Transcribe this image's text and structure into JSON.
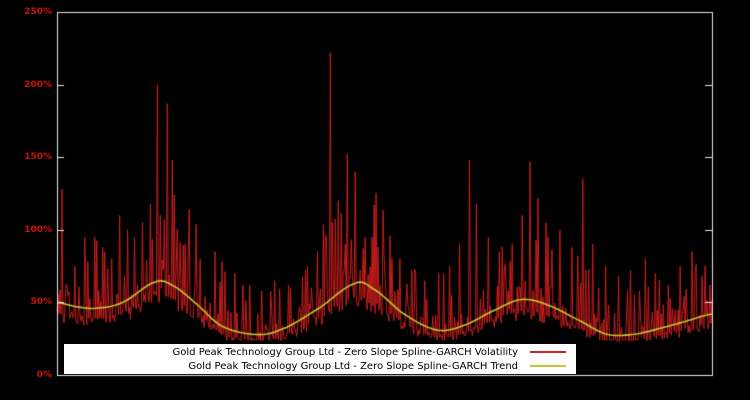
{
  "colors": {
    "background": "#000000",
    "frame": "#e8e8e8",
    "volatility": "#d81f1f",
    "trend": "#c6c630",
    "tick_label": "#cc1111",
    "legend_bg": "#ffffff",
    "legend_text": "#000000"
  },
  "y_axis": {
    "tick_labels": [
      "0%",
      "50%",
      "100%",
      "150%",
      "200%",
      "250%"
    ],
    "tick_values": [
      0,
      50,
      100,
      150,
      200,
      250
    ]
  },
  "legend": {
    "entries": [
      {
        "label": "Gold Peak Technology Group Ltd - Zero Slope Spline-GARCH Volatility",
        "color_key": "volatility"
      },
      {
        "label": "Gold Peak Technology Group Ltd - Zero Slope Spline-GARCH Trend",
        "color_key": "trend"
      }
    ]
  },
  "chart_data": {
    "type": "line",
    "title": "",
    "xlabel": "",
    "ylabel": "",
    "ylim": [
      0,
      250
    ],
    "y_unit": "%",
    "grid": false,
    "legend_position": "bottom-center",
    "series": [
      {
        "name": "Gold Peak Technology Group Ltd - Zero Slope Spline-GARCH Volatility",
        "color": "#d81f1f",
        "style": "noisy-spiky",
        "points": 660,
        "seed": 1337,
        "noise": {
          "floor": 24,
          "band_low": 0.72,
          "band_high": 0.92,
          "spike_prob": 0.45,
          "spike_scale": 1.15
        },
        "major_spikes_frac_pct": [
          [
            0.008,
            128
          ],
          [
            0.027,
            75
          ],
          [
            0.047,
            78
          ],
          [
            0.058,
            95
          ],
          [
            0.07,
            88
          ],
          [
            0.084,
            80
          ],
          [
            0.096,
            110
          ],
          [
            0.107,
            100
          ],
          [
            0.119,
            95
          ],
          [
            0.13,
            105
          ],
          [
            0.142,
            118
          ],
          [
            0.154,
            200
          ],
          [
            0.169,
            187
          ],
          [
            0.176,
            148
          ],
          [
            0.195,
            90
          ],
          [
            0.218,
            80
          ],
          [
            0.241,
            85
          ],
          [
            0.252,
            78
          ],
          [
            0.272,
            70
          ],
          [
            0.295,
            62
          ],
          [
            0.313,
            58
          ],
          [
            0.333,
            65
          ],
          [
            0.356,
            60
          ],
          [
            0.379,
            72
          ],
          [
            0.398,
            85
          ],
          [
            0.417,
            222
          ],
          [
            0.429,
            120
          ],
          [
            0.443,
            152
          ],
          [
            0.455,
            140
          ],
          [
            0.47,
            95
          ],
          [
            0.49,
            88
          ],
          [
            0.508,
            96
          ],
          [
            0.524,
            80
          ],
          [
            0.542,
            72
          ],
          [
            0.562,
            65
          ],
          [
            0.582,
            70
          ],
          [
            0.6,
            75
          ],
          [
            0.615,
            90
          ],
          [
            0.63,
            148
          ],
          [
            0.641,
            118
          ],
          [
            0.658,
            95
          ],
          [
            0.676,
            85
          ],
          [
            0.695,
            90
          ],
          [
            0.71,
            110
          ],
          [
            0.722,
            147
          ],
          [
            0.734,
            122
          ],
          [
            0.75,
            95
          ],
          [
            0.768,
            100
          ],
          [
            0.786,
            88
          ],
          [
            0.803,
            135
          ],
          [
            0.818,
            90
          ],
          [
            0.837,
            75
          ],
          [
            0.857,
            68
          ],
          [
            0.875,
            72
          ],
          [
            0.898,
            80
          ],
          [
            0.913,
            70
          ],
          [
            0.933,
            62
          ],
          [
            0.951,
            75
          ],
          [
            0.969,
            85
          ],
          [
            0.985,
            68
          ],
          [
            0.997,
            62
          ]
        ]
      },
      {
        "name": "Gold Peak Technology Group Ltd - Zero Slope Spline-GARCH Trend",
        "color": "#c6c630",
        "style": "smooth",
        "keypoints_frac_pct": [
          [
            0.0,
            50
          ],
          [
            0.03,
            47
          ],
          [
            0.06,
            46
          ],
          [
            0.1,
            50
          ],
          [
            0.15,
            64
          ],
          [
            0.175,
            62
          ],
          [
            0.21,
            50
          ],
          [
            0.25,
            34
          ],
          [
            0.3,
            28
          ],
          [
            0.34,
            31
          ],
          [
            0.4,
            46
          ],
          [
            0.455,
            63
          ],
          [
            0.48,
            60
          ],
          [
            0.53,
            42
          ],
          [
            0.58,
            31
          ],
          [
            0.62,
            34
          ],
          [
            0.67,
            45
          ],
          [
            0.71,
            52
          ],
          [
            0.75,
            48
          ],
          [
            0.8,
            37
          ],
          [
            0.84,
            28
          ],
          [
            0.88,
            28
          ],
          [
            0.92,
            32
          ],
          [
            0.96,
            37
          ],
          [
            1.0,
            42
          ]
        ]
      }
    ]
  }
}
